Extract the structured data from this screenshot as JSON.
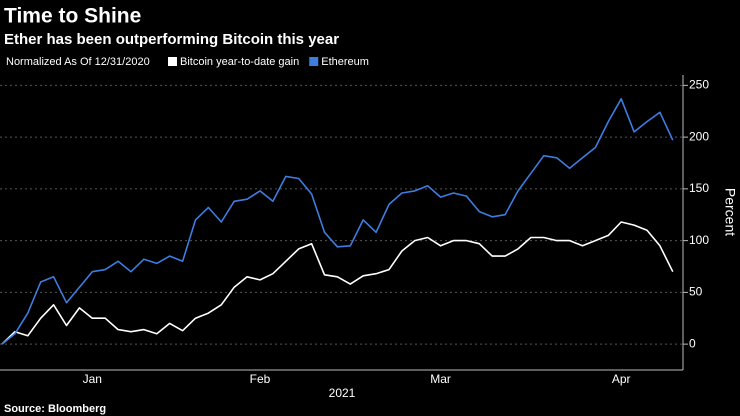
{
  "chart_data": {
    "type": "line",
    "title": "Time to Shine",
    "subtitle": "Ether has been outperforming Bitcoin this year",
    "note": "Normalized As Of 12/31/2020",
    "source": "Source: Bloomberg",
    "xlabel": "2021",
    "ylabel": "Percent",
    "categories": [
      null,
      null,
      null,
      null,
      null,
      null,
      null,
      "Jan",
      null,
      null,
      null,
      null,
      null,
      null,
      null,
      null,
      null,
      null,
      null,
      null,
      "Feb",
      null,
      null,
      null,
      null,
      null,
      null,
      null,
      null,
      null,
      null,
      null,
      null,
      null,
      "Mar",
      null,
      null,
      null,
      null,
      null,
      null,
      null,
      null,
      null,
      null,
      null,
      null,
      null,
      "Apr",
      null,
      null,
      null,
      null
    ],
    "series": [
      {
        "name": "Bitcoin year-to-date gain",
        "color": "#ffffff",
        "values": [
          0,
          12,
          8,
          25,
          38,
          18,
          35,
          25,
          25,
          14,
          12,
          14,
          10,
          20,
          13,
          25,
          30,
          38,
          55,
          65,
          62,
          68,
          80,
          92,
          97,
          67,
          65,
          58,
          66,
          68,
          72,
          90,
          100,
          103,
          95,
          100,
          100,
          97,
          85,
          85,
          92,
          103,
          103,
          100,
          100,
          95,
          100,
          105,
          118,
          115,
          110,
          95,
          70
        ]
      },
      {
        "name": "Ethereum",
        "color": "#3d7de0",
        "values": [
          0,
          10,
          30,
          60,
          65,
          40,
          55,
          70,
          72,
          80,
          70,
          82,
          78,
          85,
          80,
          120,
          132,
          118,
          138,
          140,
          148,
          138,
          162,
          160,
          145,
          108,
          94,
          95,
          120,
          108,
          135,
          146,
          148,
          153,
          142,
          146,
          143,
          128,
          123,
          125,
          148,
          165,
          182,
          180,
          170,
          180,
          190,
          215,
          237,
          205,
          215,
          224,
          197
        ]
      }
    ],
    "ylim": [
      -25,
      260
    ],
    "yticks": [
      0,
      50,
      100,
      150,
      200,
      250
    ],
    "grid": true
  }
}
